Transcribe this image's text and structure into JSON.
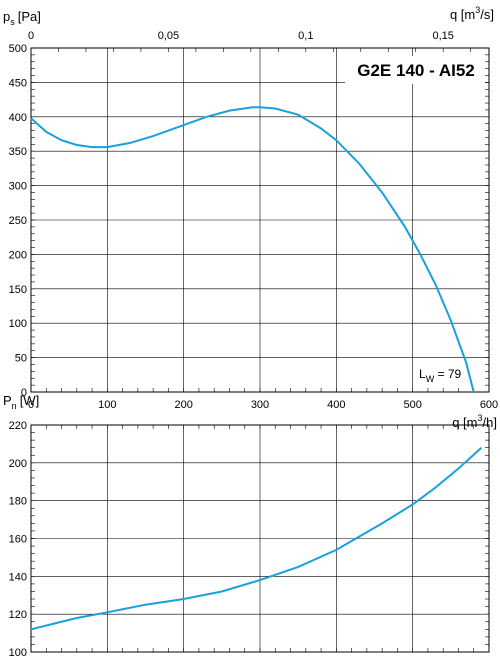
{
  "chart_data": [
    {
      "type": "line",
      "title": "G2E 140 - AI52",
      "ylabel": "p",
      "ylabel_sub": "s",
      "ylabel_unit": "[Pa]",
      "xlabel_bottom": "q [m",
      "xlabel_bottom_sup": "3",
      "xlabel_bottom_end": "/h]",
      "xlabel_top": "q [m",
      "xlabel_top_sup": "3",
      "xlabel_top_end": "/s]",
      "xlim": [
        0,
        600
      ],
      "ylim": [
        0,
        500
      ],
      "x_ticks": [
        "0",
        "100",
        "200",
        "300",
        "400",
        "500",
        "600"
      ],
      "x_tick_values": [
        0,
        100,
        200,
        300,
        400,
        500,
        600
      ],
      "x_top_ticks": [
        "0",
        "0,05",
        "0,1",
        "0,15"
      ],
      "x_top_tick_values_m3s": [
        0,
        0.05,
        0.1,
        0.15
      ],
      "y_ticks": [
        "0",
        "50",
        "100",
        "150",
        "200",
        "250",
        "300",
        "350",
        "400",
        "450",
        "500"
      ],
      "y_tick_values": [
        0,
        50,
        100,
        150,
        200,
        250,
        300,
        350,
        400,
        450,
        500
      ],
      "grid": true,
      "annotation_main": "L",
      "annotation_sub": "W",
      "annotation_value": " = 79",
      "series": [
        {
          "color": "#1aa0dc",
          "x": [
            0,
            20,
            40,
            60,
            80,
            100,
            130,
            160,
            200,
            230,
            260,
            290,
            300,
            320,
            350,
            380,
            400,
            430,
            460,
            490,
            510,
            530,
            550,
            570,
            580
          ],
          "y": [
            398,
            378,
            366,
            359,
            356,
            356,
            362,
            372,
            388,
            400,
            409,
            414,
            414,
            412,
            403,
            383,
            366,
            332,
            290,
            240,
            200,
            156,
            104,
            43,
            0
          ]
        }
      ]
    },
    {
      "type": "line",
      "ylabel": "P",
      "ylabel_sub": "n",
      "ylabel_unit": "[W]",
      "xlim": [
        0,
        600
      ],
      "ylim": [
        100,
        220
      ],
      "y_ticks": [
        "100",
        "120",
        "140",
        "160",
        "180",
        "200",
        "220"
      ],
      "y_tick_values": [
        100,
        120,
        140,
        160,
        180,
        200,
        220
      ],
      "grid": true,
      "series": [
        {
          "color": "#1aa0dc",
          "x": [
            0,
            30,
            60,
            100,
            150,
            200,
            250,
            300,
            350,
            400,
            430,
            460,
            500,
            530,
            560,
            590
          ],
          "y": [
            112,
            115,
            118,
            121,
            125,
            128,
            132,
            138,
            145,
            154,
            161,
            168,
            178,
            187,
            197,
            208
          ]
        }
      ]
    }
  ]
}
